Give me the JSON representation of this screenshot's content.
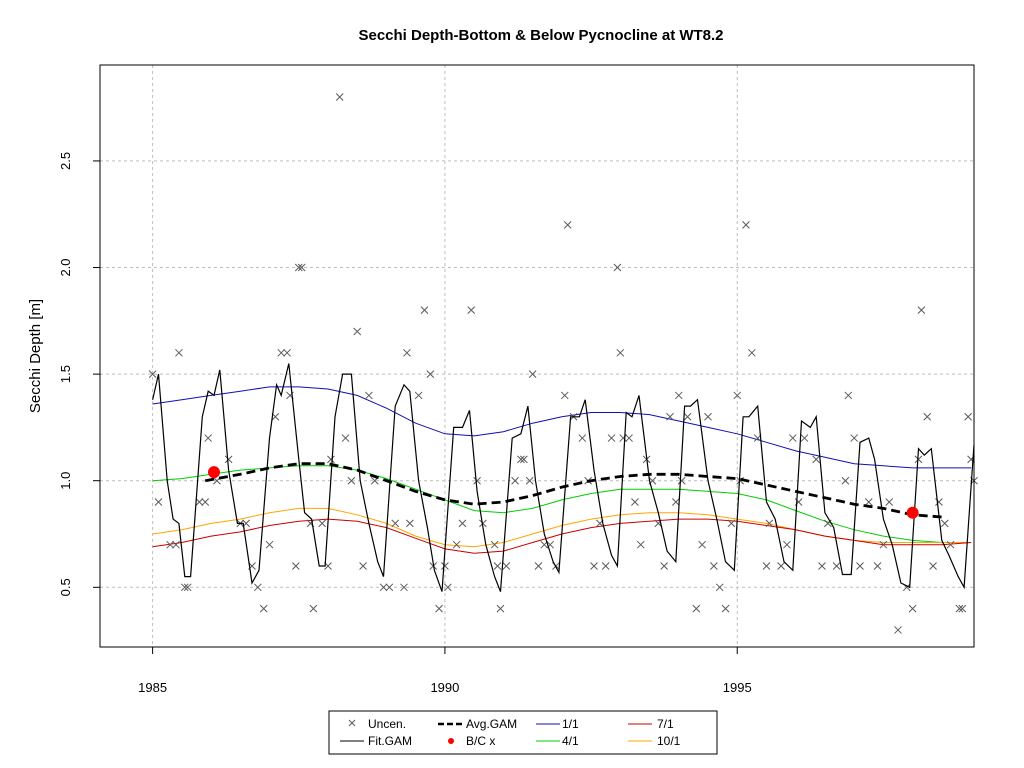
{
  "chart_data": {
    "type": "scatter",
    "title": "Secchi Depth-Bottom & Below Pycnocline at WT8.2",
    "xlabel": "",
    "ylabel": "Secchi Depth [m]",
    "xlim": [
      1984.1,
      1999.05
    ],
    "ylim": [
      0.22,
      2.95
    ],
    "x_ticks": [
      1985,
      1990,
      1995
    ],
    "x_tick_labels": [
      "1985",
      "1990",
      "1995"
    ],
    "y_ticks": [
      0.5,
      1.0,
      1.5,
      2.0,
      2.5
    ],
    "y_tick_labels": [
      "0.5",
      "1.0",
      "1.5",
      "2.0",
      "2.5"
    ],
    "grid": true,
    "legend_position": "bottom-center",
    "legend": {
      "uncen": "Uncen.",
      "fit_gam": "Fit.GAM",
      "avg_gam": "Avg.GAM",
      "bc_x": "B/C x",
      "s1": "1/1",
      "s4": "4/1",
      "s7": "7/1",
      "s10": "10/1"
    },
    "colors": {
      "uncen": "#5a5a5a",
      "fit_gam": "#000000",
      "avg_gam": "#000000",
      "bc_x": "#ff0000",
      "s1": "#1010b0",
      "s4": "#00cc00",
      "s7": "#cc0000",
      "s10": "#ffa500"
    },
    "observations": [
      [
        1985.0,
        1.5
      ],
      [
        1985.1,
        0.9
      ],
      [
        1985.3,
        0.7
      ],
      [
        1985.4,
        0.7
      ],
      [
        1985.45,
        1.6
      ],
      [
        1985.55,
        0.5
      ],
      [
        1985.6,
        0.5
      ],
      [
        1985.8,
        0.9
      ],
      [
        1985.9,
        0.9
      ],
      [
        1985.95,
        1.2
      ],
      [
        1986.1,
        1.0
      ],
      [
        1986.3,
        1.1
      ],
      [
        1986.5,
        0.8
      ],
      [
        1986.6,
        0.8
      ],
      [
        1986.7,
        0.6
      ],
      [
        1986.8,
        0.5
      ],
      [
        1986.9,
        0.4
      ],
      [
        1987.0,
        0.7
      ],
      [
        1987.1,
        1.3
      ],
      [
        1987.2,
        1.6
      ],
      [
        1987.3,
        1.6
      ],
      [
        1987.35,
        1.4
      ],
      [
        1987.45,
        0.6
      ],
      [
        1987.5,
        2.0
      ],
      [
        1987.55,
        2.0
      ],
      [
        1987.7,
        0.8
      ],
      [
        1987.75,
        0.4
      ],
      [
        1987.9,
        0.8
      ],
      [
        1988.0,
        0.6
      ],
      [
        1988.05,
        1.1
      ],
      [
        1988.2,
        2.8
      ],
      [
        1988.3,
        1.2
      ],
      [
        1988.4,
        1.0
      ],
      [
        1988.5,
        1.7
      ],
      [
        1988.6,
        0.6
      ],
      [
        1988.7,
        1.4
      ],
      [
        1988.8,
        1.0
      ],
      [
        1988.95,
        0.5
      ],
      [
        1989.05,
        0.5
      ],
      [
        1989.15,
        0.8
      ],
      [
        1989.3,
        0.5
      ],
      [
        1989.35,
        1.6
      ],
      [
        1989.4,
        0.8
      ],
      [
        1989.55,
        1.4
      ],
      [
        1989.65,
        1.8
      ],
      [
        1989.75,
        1.5
      ],
      [
        1989.8,
        0.6
      ],
      [
        1989.9,
        0.4
      ],
      [
        1990.0,
        0.6
      ],
      [
        1990.05,
        0.5
      ],
      [
        1990.2,
        0.7
      ],
      [
        1990.3,
        0.8
      ],
      [
        1990.45,
        1.8
      ],
      [
        1990.55,
        1.0
      ],
      [
        1990.65,
        0.8
      ],
      [
        1990.85,
        0.7
      ],
      [
        1990.9,
        0.6
      ],
      [
        1990.95,
        0.4
      ],
      [
        1991.05,
        0.6
      ],
      [
        1991.2,
        1.0
      ],
      [
        1991.3,
        1.1
      ],
      [
        1991.35,
        1.1
      ],
      [
        1991.45,
        1.0
      ],
      [
        1991.5,
        1.5
      ],
      [
        1991.6,
        0.6
      ],
      [
        1991.7,
        0.7
      ],
      [
        1991.8,
        0.7
      ],
      [
        1991.9,
        0.6
      ],
      [
        1992.05,
        1.4
      ],
      [
        1992.1,
        2.2
      ],
      [
        1992.2,
        1.3
      ],
      [
        1992.35,
        1.2
      ],
      [
        1992.45,
        1.0
      ],
      [
        1992.55,
        0.6
      ],
      [
        1992.65,
        0.8
      ],
      [
        1992.75,
        0.6
      ],
      [
        1992.85,
        1.2
      ],
      [
        1992.95,
        2.0
      ],
      [
        1993.0,
        1.6
      ],
      [
        1993.05,
        1.2
      ],
      [
        1993.15,
        1.2
      ],
      [
        1993.25,
        0.9
      ],
      [
        1993.35,
        0.7
      ],
      [
        1993.45,
        1.1
      ],
      [
        1993.55,
        1.0
      ],
      [
        1993.65,
        0.8
      ],
      [
        1993.75,
        0.6
      ],
      [
        1993.85,
        1.3
      ],
      [
        1993.95,
        0.9
      ],
      [
        1994.0,
        1.4
      ],
      [
        1994.05,
        1.0
      ],
      [
        1994.15,
        1.3
      ],
      [
        1994.3,
        0.4
      ],
      [
        1994.4,
        0.7
      ],
      [
        1994.5,
        1.3
      ],
      [
        1994.6,
        0.6
      ],
      [
        1994.7,
        0.5
      ],
      [
        1994.8,
        0.4
      ],
      [
        1994.9,
        0.8
      ],
      [
        1995.0,
        1.4
      ],
      [
        1995.05,
        1.0
      ],
      [
        1995.15,
        2.2
      ],
      [
        1995.25,
        1.6
      ],
      [
        1995.35,
        1.2
      ],
      [
        1995.5,
        0.6
      ],
      [
        1995.55,
        0.8
      ],
      [
        1995.75,
        0.6
      ],
      [
        1995.85,
        0.7
      ],
      [
        1995.95,
        1.2
      ],
      [
        1996.05,
        0.9
      ],
      [
        1996.15,
        1.2
      ],
      [
        1996.35,
        1.1
      ],
      [
        1996.45,
        0.6
      ],
      [
        1996.55,
        0.8
      ],
      [
        1996.7,
        0.6
      ],
      [
        1996.85,
        1.0
      ],
      [
        1996.9,
        1.4
      ],
      [
        1997.0,
        1.2
      ],
      [
        1997.1,
        0.6
      ],
      [
        1997.25,
        0.9
      ],
      [
        1997.4,
        0.6
      ],
      [
        1997.5,
        0.7
      ],
      [
        1997.6,
        0.9
      ],
      [
        1997.75,
        0.3
      ],
      [
        1997.9,
        0.5
      ],
      [
        1998.0,
        0.4
      ],
      [
        1998.1,
        1.1
      ],
      [
        1998.15,
        1.8
      ],
      [
        1998.25,
        1.3
      ],
      [
        1998.35,
        0.6
      ],
      [
        1998.45,
        0.9
      ],
      [
        1998.55,
        0.8
      ],
      [
        1998.65,
        0.7
      ],
      [
        1998.8,
        0.4
      ],
      [
        1998.85,
        0.4
      ],
      [
        1998.95,
        1.3
      ],
      [
        1999.0,
        1.1
      ],
      [
        1999.05,
        1.0
      ]
    ],
    "fit_gam_knots": [
      [
        1985.0,
        1.38
      ],
      [
        1985.1,
        1.5
      ],
      [
        1985.25,
        1.0
      ],
      [
        1985.35,
        0.82
      ],
      [
        1985.45,
        0.8
      ],
      [
        1985.55,
        0.55
      ],
      [
        1985.65,
        0.55
      ],
      [
        1985.85,
        1.3
      ],
      [
        1985.95,
        1.42
      ],
      [
        1986.05,
        1.4
      ],
      [
        1986.15,
        1.52
      ],
      [
        1986.3,
        1.05
      ],
      [
        1986.45,
        0.8
      ],
      [
        1986.55,
        0.8
      ],
      [
        1986.7,
        0.52
      ],
      [
        1986.82,
        0.58
      ],
      [
        1987.0,
        1.2
      ],
      [
        1987.12,
        1.45
      ],
      [
        1987.2,
        1.4
      ],
      [
        1987.33,
        1.55
      ],
      [
        1987.5,
        1.1
      ],
      [
        1987.6,
        0.85
      ],
      [
        1987.72,
        0.82
      ],
      [
        1987.85,
        0.6
      ],
      [
        1987.95,
        0.6
      ],
      [
        1988.12,
        1.3
      ],
      [
        1988.25,
        1.5
      ],
      [
        1988.4,
        1.5
      ],
      [
        1988.55,
        1.0
      ],
      [
        1988.7,
        0.8
      ],
      [
        1988.85,
        0.62
      ],
      [
        1988.95,
        0.55
      ],
      [
        1989.15,
        1.35
      ],
      [
        1989.3,
        1.45
      ],
      [
        1989.4,
        1.42
      ],
      [
        1989.55,
        1.0
      ],
      [
        1989.7,
        0.78
      ],
      [
        1989.82,
        0.58
      ],
      [
        1989.95,
        0.48
      ],
      [
        1990.15,
        1.25
      ],
      [
        1990.3,
        1.25
      ],
      [
        1990.42,
        1.33
      ],
      [
        1990.55,
        0.95
      ],
      [
        1990.7,
        0.7
      ],
      [
        1990.85,
        0.55
      ],
      [
        1990.95,
        0.48
      ],
      [
        1991.15,
        1.2
      ],
      [
        1991.3,
        1.22
      ],
      [
        1991.42,
        1.35
      ],
      [
        1991.55,
        1.0
      ],
      [
        1991.7,
        0.75
      ],
      [
        1991.85,
        0.62
      ],
      [
        1991.95,
        0.57
      ],
      [
        1992.15,
        1.3
      ],
      [
        1992.3,
        1.3
      ],
      [
        1992.4,
        1.38
      ],
      [
        1992.55,
        1.05
      ],
      [
        1992.7,
        0.8
      ],
      [
        1992.85,
        0.65
      ],
      [
        1992.95,
        0.6
      ],
      [
        1993.1,
        1.32
      ],
      [
        1993.2,
        1.3
      ],
      [
        1993.32,
        1.4
      ],
      [
        1993.5,
        1.0
      ],
      [
        1993.65,
        0.85
      ],
      [
        1993.8,
        0.67
      ],
      [
        1993.95,
        0.62
      ],
      [
        1994.1,
        1.35
      ],
      [
        1994.2,
        1.35
      ],
      [
        1994.32,
        1.38
      ],
      [
        1994.5,
        1.0
      ],
      [
        1994.65,
        0.82
      ],
      [
        1994.8,
        0.62
      ],
      [
        1994.95,
        0.58
      ],
      [
        1995.1,
        1.3
      ],
      [
        1995.2,
        1.3
      ],
      [
        1995.35,
        1.35
      ],
      [
        1995.5,
        0.9
      ],
      [
        1995.65,
        0.82
      ],
      [
        1995.8,
        0.62
      ],
      [
        1995.95,
        0.58
      ],
      [
        1996.1,
        1.28
      ],
      [
        1996.25,
        1.25
      ],
      [
        1996.35,
        1.3
      ],
      [
        1996.5,
        0.85
      ],
      [
        1996.65,
        0.78
      ],
      [
        1996.8,
        0.56
      ],
      [
        1996.95,
        0.56
      ],
      [
        1997.1,
        1.18
      ],
      [
        1997.25,
        1.2
      ],
      [
        1997.35,
        1.1
      ],
      [
        1997.5,
        0.82
      ],
      [
        1997.65,
        0.7
      ],
      [
        1997.8,
        0.52
      ],
      [
        1997.95,
        0.5
      ],
      [
        1998.1,
        1.15
      ],
      [
        1998.2,
        1.12
      ],
      [
        1998.32,
        1.15
      ],
      [
        1998.5,
        0.72
      ],
      [
        1998.62,
        0.65
      ],
      [
        1998.78,
        0.55
      ],
      [
        1998.88,
        0.5
      ],
      [
        1999.05,
        1.17
      ]
    ],
    "avg_gam_x": [
      1985.9,
      1986.5,
      1987.0,
      1987.5,
      1988.0,
      1988.5,
      1989.0,
      1989.5,
      1990.0,
      1990.5,
      1991.0,
      1991.5,
      1992.0,
      1992.5,
      1993.0,
      1993.5,
      1994.0,
      1994.5,
      1995.0,
      1995.5,
      1996.0,
      1996.5,
      1997.0,
      1997.5,
      1998.0,
      1998.5
    ],
    "avg_gam_y": [
      1.0,
      1.03,
      1.06,
      1.08,
      1.08,
      1.05,
      1.0,
      0.95,
      0.91,
      0.89,
      0.9,
      0.93,
      0.97,
      1.0,
      1.02,
      1.03,
      1.03,
      1.02,
      1.01,
      0.98,
      0.95,
      0.92,
      0.89,
      0.87,
      0.84,
      0.83
    ],
    "bc_points": [
      [
        1986.05,
        1.04
      ],
      [
        1998.0,
        0.85
      ]
    ],
    "smooth_x": [
      1985.0,
      1985.5,
      1986.0,
      1986.5,
      1987.0,
      1987.5,
      1988.0,
      1988.5,
      1989.0,
      1989.5,
      1990.0,
      1990.5,
      1991.0,
      1991.5,
      1992.0,
      1992.5,
      1993.0,
      1993.5,
      1994.0,
      1994.5,
      1995.0,
      1995.5,
      1996.0,
      1996.5,
      1997.0,
      1997.5,
      1998.0,
      1998.5,
      1999.0
    ],
    "s1_y": [
      1.36,
      1.38,
      1.4,
      1.42,
      1.44,
      1.44,
      1.43,
      1.4,
      1.34,
      1.27,
      1.22,
      1.21,
      1.23,
      1.27,
      1.3,
      1.32,
      1.32,
      1.31,
      1.28,
      1.25,
      1.22,
      1.18,
      1.14,
      1.11,
      1.08,
      1.07,
      1.06,
      1.06,
      1.06
    ],
    "s4_y": [
      1.0,
      1.01,
      1.03,
      1.05,
      1.06,
      1.07,
      1.07,
      1.05,
      1.01,
      0.96,
      0.91,
      0.86,
      0.85,
      0.87,
      0.91,
      0.94,
      0.96,
      0.96,
      0.96,
      0.95,
      0.94,
      0.91,
      0.86,
      0.81,
      0.77,
      0.74,
      0.72,
      0.71,
      0.71
    ],
    "s7_y": [
      0.69,
      0.71,
      0.74,
      0.76,
      0.79,
      0.81,
      0.82,
      0.81,
      0.78,
      0.73,
      0.68,
      0.66,
      0.67,
      0.71,
      0.75,
      0.78,
      0.8,
      0.81,
      0.82,
      0.82,
      0.81,
      0.79,
      0.77,
      0.74,
      0.72,
      0.7,
      0.7,
      0.7,
      0.71
    ],
    "s10_y": [
      0.75,
      0.77,
      0.8,
      0.82,
      0.85,
      0.87,
      0.87,
      0.84,
      0.8,
      0.74,
      0.7,
      0.69,
      0.71,
      0.75,
      0.79,
      0.82,
      0.84,
      0.85,
      0.85,
      0.84,
      0.82,
      0.8,
      0.77,
      0.74,
      0.72,
      0.71,
      0.71,
      0.71,
      0.71
    ]
  }
}
